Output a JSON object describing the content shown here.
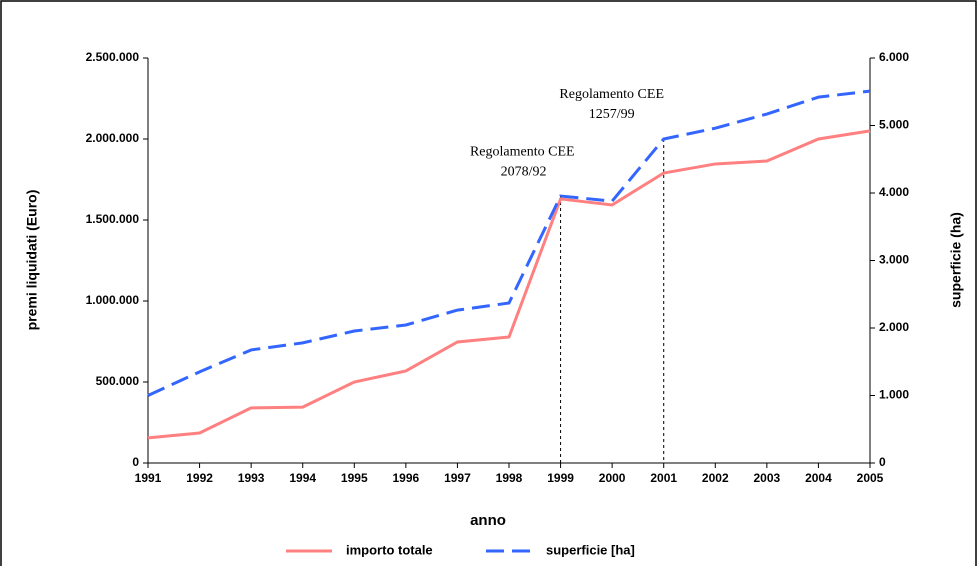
{
  "chart_data": {
    "type": "line",
    "x_label": "anno",
    "y_label": "premi liquidati (Euro)",
    "y2_label": "superficie (ha)",
    "categories": [
      "1991",
      "1992",
      "1993",
      "1994",
      "1995",
      "1996",
      "1997",
      "1998",
      "1999",
      "2000",
      "2001",
      "2002",
      "2003",
      "2004",
      "2005"
    ],
    "series": [
      {
        "name": "importo totale",
        "color": "#ff8080",
        "values": [
          155000,
          185000,
          340000,
          345000,
          500000,
          568000,
          747000,
          778000,
          1630000,
          1593000,
          1790000,
          1846000,
          1864000,
          2000000,
          2050000
        ]
      },
      {
        "name": "superficie [ha]",
        "color": "#3366ff",
        "axis": "y2",
        "dashed": true,
        "values": [
          1000,
          1350,
          1675,
          1780,
          1955,
          2045,
          2265,
          2370,
          3955,
          3880,
          4800,
          4960,
          5170,
          5420,
          5510
        ]
      }
    ],
    "ylim": [
      0,
      2500000
    ],
    "yticks": [
      0,
      {
        "value": 500000,
        "label": "500.000"
      },
      {
        "value": 1000000,
        "label": "1.000.000"
      },
      {
        "value": 1500000,
        "label": "1.500.000"
      },
      {
        "value": 2000000,
        "label": "2.000.000"
      },
      {
        "value": 2500000,
        "label": "2.500.000"
      }
    ],
    "y2lim": [
      0,
      6000
    ],
    "y2ticks": [
      0,
      {
        "value": 1000,
        "label": "1.000"
      },
      {
        "value": 2000,
        "label": "2.000"
      },
      {
        "value": 3000,
        "label": "3.000"
      },
      {
        "value": 4000,
        "label": "4.000"
      },
      {
        "value": 5000,
        "label": "5.000"
      },
      {
        "value": 6000,
        "label": "6.000"
      }
    ],
    "annotations": [
      {
        "x": "1999",
        "text": [
          "Regolamento CEE",
          "2078/92"
        ]
      },
      {
        "x": "2001",
        "text": [
          "Regolamento CEE",
          "1257/99"
        ]
      }
    ],
    "legend": "bottom"
  }
}
